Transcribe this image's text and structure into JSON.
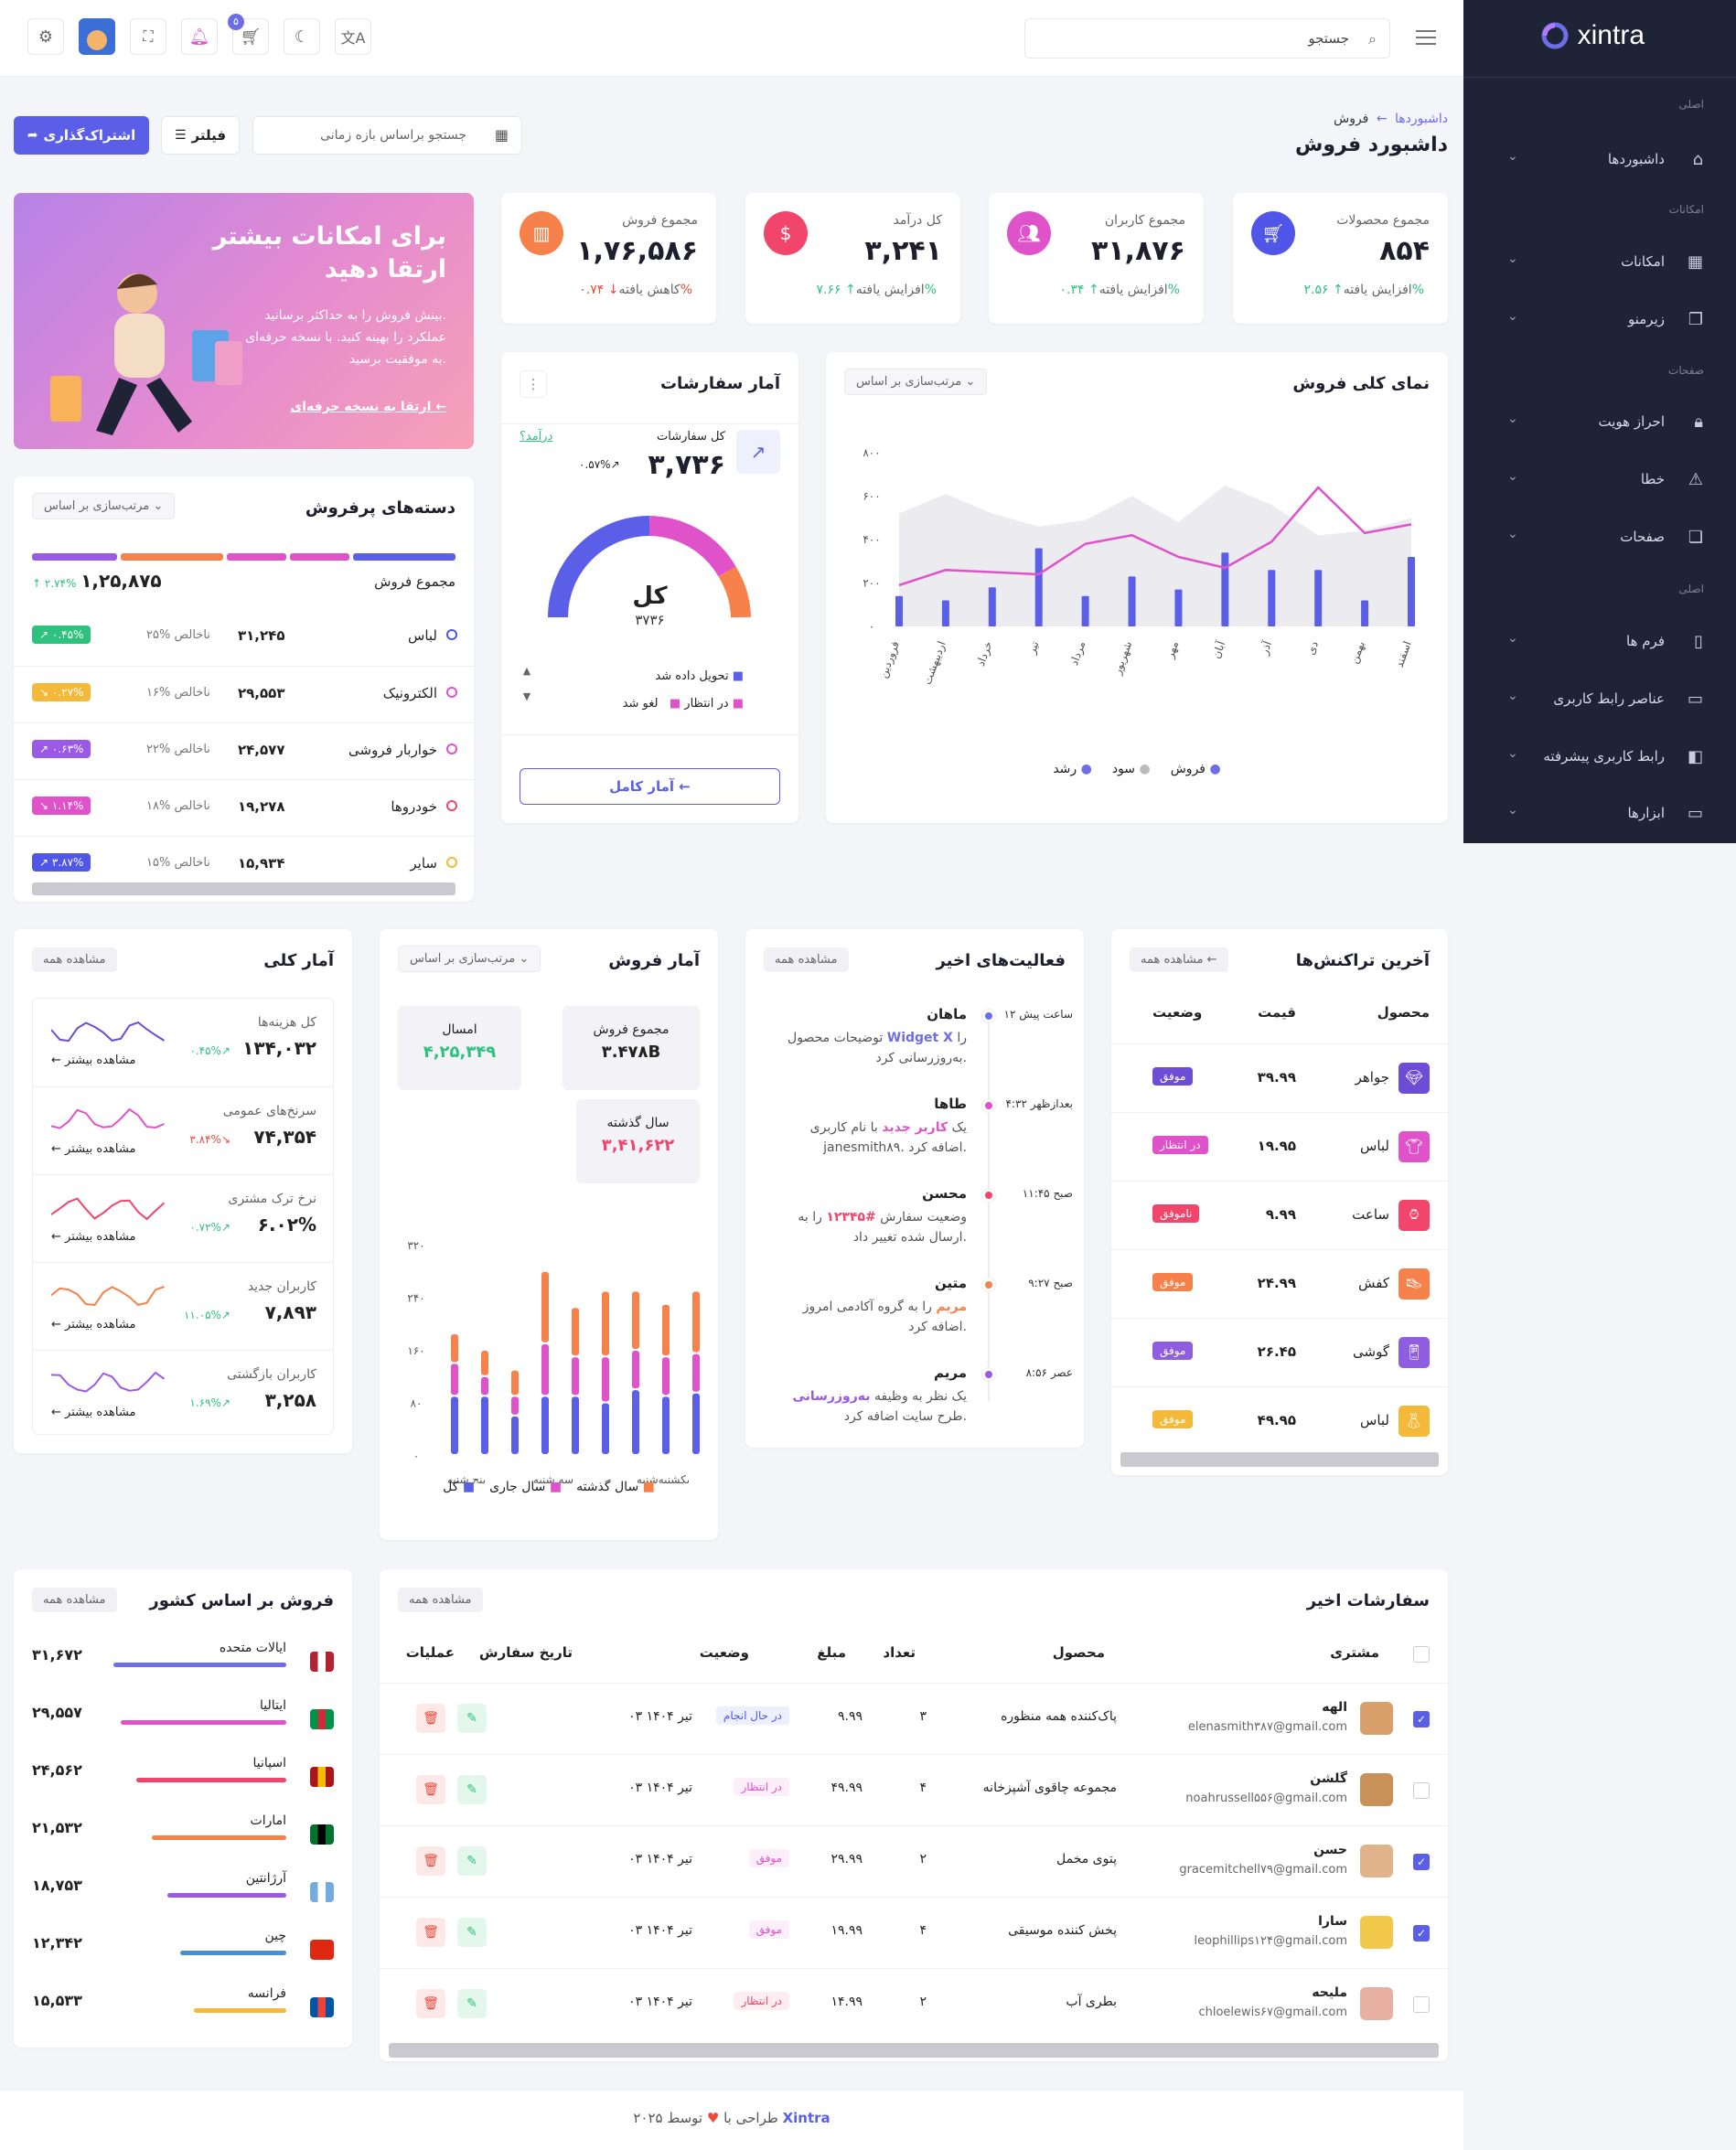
{
  "brand": "xintra",
  "header": {
    "search_placeholder": "جستجو",
    "cart_count": "۵"
  },
  "sidebar": {
    "sec1": "اصلی",
    "i1": "داشبوردها",
    "sec2": "امکانات",
    "i2": "امکانات",
    "i3": "زیرمنو",
    "sec3": "صفحات",
    "i4": "احراز هویت",
    "i5": "خطا",
    "i6": "صفحات",
    "sec4": "اصلی",
    "i7": "فرم ها",
    "i8": "عناصر رابط کاربری",
    "i9": "رابط کاربری پیشرفته",
    "i10": "ابزارها"
  },
  "page": {
    "crumb1": "داشبوردها",
    "crumb_sep": "←",
    "crumb2": "فروش",
    "title": "داشبورد فروش",
    "date_placeholder": "جستجو براساس بازه زمانی",
    "filter": "فیلتر",
    "share": "اشتراک‌گذاری"
  },
  "stats": [
    {
      "label": "مجموع محصولات",
      "value": "۸۵۴",
      "change": "↑ ۲.۵۶%",
      "note": "افزایش یافته",
      "color": "#4f56e8"
    },
    {
      "label": "مجموع کاربران",
      "value": "۳۱,۸۷۶",
      "change": "↑ ۰.۳۴%",
      "note": "افزایش یافته",
      "color": "#e052c9"
    },
    {
      "label": "کل درآمد",
      "value": "۳,۲۴۱",
      "change": "↑ ۷.۶۶%",
      "note": "افزایش یافته",
      "color": "#f2456c"
    },
    {
      "label": "مجموع فروش",
      "value": "۱,۷۶,۵۸۶",
      "change": "↓ ۰.۷۴%",
      "note": "کاهش یافته",
      "color": "#f7814a"
    }
  ],
  "promo": {
    "title1": "برای امکانات بیشتر",
    "title2": "ارتقا دهید",
    "desc1": "بینش فروش را به حداکثر برسانید.",
    "desc2": "عملکرد را بهینه کنید. با نسخه حرفه‌ای",
    "desc3": "به موفقیت برسید.",
    "link": "ارتقا به نسخه حرفه‌ای ←"
  },
  "overview": {
    "title": "نمای کلی فروش",
    "sort": "مرتب‌سازی بر اساس ⌄",
    "legend": [
      "فروش",
      "سود",
      "رشد"
    ]
  },
  "chart_data": {
    "type": "bar",
    "categories": [
      "فروردین",
      "اردیبهشت",
      "خرداد",
      "تیر",
      "مرداد",
      "شهریور",
      "مهر",
      "آبان",
      "آذر",
      "دی",
      "بهمن",
      "اسفند"
    ],
    "y_ticks": [
      "۰",
      "۲۰۰",
      "۴۰۰",
      "۶۰۰",
      "۸۰۰"
    ],
    "ylim": [
      0,
      800
    ],
    "series": [
      {
        "name": "فروش",
        "values": [
          140,
          120,
          180,
          360,
          140,
          230,
          170,
          340,
          260,
          260,
          120,
          320
        ]
      },
      {
        "name": "سود",
        "values": [
          190,
          260,
          250,
          240,
          380,
          420,
          320,
          270,
          390,
          640,
          430,
          470
        ]
      },
      {
        "name": "رشد",
        "values": [
          520,
          610,
          520,
          460,
          490,
          600,
          480,
          650,
          560,
          420,
          440,
          500
        ]
      }
    ]
  },
  "orders": {
    "title": "آمار سفارشات",
    "total_label": "کل سفارشات",
    "total_value": "۳,۷۳۶",
    "change": "۰.۵۷%↗",
    "link": "درآمد؟",
    "center_label": "کل",
    "center_value": "۳۷۳۶",
    "legend": [
      "تحویل داده شد",
      "در انتظار",
      "لغو شد"
    ],
    "btn": "آمار کامل ←"
  },
  "categories": {
    "title": "دسته‌های پرفروش",
    "sort": "مرتب‌سازی بر اساس ⌄",
    "total_label": "مجموع فروش",
    "total_value": "۱,۲۵,۸۷۵",
    "total_change": "↑ ۲.۷۴%",
    "rows": [
      {
        "name": "لباس",
        "value": "۳۱,۲۴۵",
        "pct": "۲۵% ناخالص",
        "badge": "↗ ۰.۴۵%",
        "color": "#2ec27e",
        "dot": "#4f56e8"
      },
      {
        "name": "الکترونیک",
        "value": "۲۹,۵۵۳",
        "pct": "۱۶% ناخالص",
        "badge": "↘ ۰.۲۷%",
        "color": "#f5b93a",
        "dot": "#e052c9"
      },
      {
        "name": "خواربار فروشی",
        "value": "۲۴,۵۷۷",
        "pct": "۲۲% ناخالص",
        "badge": "↗ ۰.۶۳%",
        "color": "#9b59e8",
        "dot": "#e052c9"
      },
      {
        "name": "خودروها",
        "value": "۱۹,۲۷۸",
        "pct": "۱۸% ناخالص",
        "badge": "↘ ۱.۱۴%",
        "color": "#e052c9",
        "dot": "#f2456c"
      },
      {
        "name": "سایر",
        "value": "۱۵,۹۳۴",
        "pct": "۱۵% ناخالص",
        "badge": "↗ ۳.۸۷%",
        "color": "#4f56e8",
        "dot": "#f5b93a"
      }
    ]
  },
  "overall": {
    "title": "آمار کلی",
    "pill": "مشاهده همه",
    "more": "مشاهده بیشتر",
    "rows": [
      {
        "label": "کل هزینه‌ها",
        "value": "۱۳۴,۰۳۲",
        "change": "۰.۴۵%↗",
        "color": "#6d4cd6"
      },
      {
        "label": "سرنخ‌های عمومی",
        "value": "۷۴,۳۵۴",
        "change": "۳.۸۴%↘",
        "color": "#e052c9"
      },
      {
        "label": "نرخ ترک مشتری",
        "value": "۶.۰۲%",
        "change": "۰.۷۲%↗",
        "color": "#f2456c"
      },
      {
        "label": "کاربران جدید",
        "value": "۷,۸۹۳",
        "change": "۱۱.۰۵%↗",
        "color": "#f7814a"
      },
      {
        "label": "کاربران بازگشتی",
        "value": "۳,۲۵۸",
        "change": "۱.۶۹%↗",
        "color": "#9b59e8"
      }
    ]
  },
  "salesstats": {
    "title": "آمار فروش",
    "sort": "مرتب‌سازی بر اساس ⌄",
    "b1_label": "مجموع فروش",
    "b1_value": "۳.۴۷۸B",
    "b2_label": "امسال",
    "b2_value": "۴,۲۵,۳۴۹",
    "b3_label": "سال گذشته",
    "b3_value": "۳,۴۱,۶۲۲",
    "y_ticks": [
      "۰",
      "۸۰",
      "۱۶۰",
      "۲۴۰",
      "۳۲۰"
    ],
    "x_labels": [
      "یکشنبه‌شنبه",
      "سه شنبه",
      "پنج شنبه"
    ],
    "legend": [
      "سال گذشته",
      "سال جاری",
      "کل"
    ]
  },
  "activity": {
    "title": "فعالیت‌های اخیر",
    "pill": "مشاهده همه",
    "items": [
      {
        "time": "۱۲ ساعت پیش",
        "name": "ماهان",
        "t1": "توضیحات محصول",
        "hl": "Widget X",
        "t2": "را",
        "t3": "به‌روزرسانی کرد.",
        "dot": "#6d6de8"
      },
      {
        "time": "۴:۳۲ بعدازظهر",
        "name": "طاها",
        "t1": "یک",
        "hl": "کاربر جدید",
        "t2": "با نام کاربری",
        "t3": "janesmith۸۹. اضافه کرد.",
        "dot": "#e052c9"
      },
      {
        "time": "۱۱:۴۵ صبح",
        "name": "محسن",
        "t1": "وضعیت سفارش",
        "hl": "#۱۲۳۴۵",
        "t2": "را به",
        "t3": "ارسال شده تغییر داد.",
        "dot": "#f2456c"
      },
      {
        "time": "۹:۲۷ صبح",
        "name": "متین",
        "t1": "",
        "hl": "مریم",
        "t2": "را به گروه آکادمی امروز",
        "t3": "اضافه کرد.",
        "dot": "#f7814a"
      },
      {
        "time": "۸:۵۶ عصر",
        "name": "مریم",
        "t1": "یک نظر به وظیفه",
        "hl": "به‌روزرسانی",
        "t2": "",
        "t3": "طرح سایت اضافه کرد.",
        "dot": "#9b59e8"
      }
    ]
  },
  "transactions": {
    "title": "آخرین تراکنش‌ها",
    "pill": "مشاهده همه ←",
    "h1": "محصول",
    "h2": "قیمت",
    "h3": "وضعیت",
    "rows": [
      {
        "name": "جواهر",
        "price": "۳۹.۹۹",
        "status": "موفق",
        "color": "#6d4cd6"
      },
      {
        "name": "لباس",
        "price": "۱۹.۹۵",
        "status": "در انتظار",
        "color": "#e052c9"
      },
      {
        "name": "ساعت",
        "price": "۹.۹۹",
        "status": "ناموفق",
        "color": "#f2456c"
      },
      {
        "name": "کفش",
        "price": "۲۴.۹۹",
        "status": "موفق",
        "color": "#f7814a"
      },
      {
        "name": "گوشی",
        "price": "۲۶.۴۵",
        "status": "موفق",
        "color": "#8e5de0"
      },
      {
        "name": "لباس",
        "price": "۴۹.۹۵",
        "status": "موفق",
        "color": "#f5b93a"
      }
    ]
  },
  "countries": {
    "title": "فروش بر اساس کشور",
    "pill": "مشاهده همه",
    "rows": [
      {
        "name": "ایالات متحده",
        "value": "۳۱,۶۷۲",
        "color": "#6d6de8",
        "w": 0.9
      },
      {
        "name": "ایتالیا",
        "value": "۲۹,۵۵۷",
        "color": "#e052c9",
        "w": 0.86
      },
      {
        "name": "اسپانیا",
        "value": "۲۴,۵۶۲",
        "color": "#f2456c",
        "w": 0.78
      },
      {
        "name": "امارات",
        "value": "۲۱,۵۳۲",
        "color": "#f7814a",
        "w": 0.7
      },
      {
        "name": "آرژانتین",
        "value": "۱۸,۷۵۳",
        "color": "#9b59e8",
        "w": 0.62
      },
      {
        "name": "چین",
        "value": "۱۲,۳۴۲",
        "color": "#4a8fd6",
        "w": 0.55
      },
      {
        "name": "فرانسه",
        "value": "۱۵,۵۳۳",
        "color": "#f5b93a",
        "w": 0.48
      }
    ]
  },
  "recent": {
    "title": "سفارشات اخیر",
    "pill": "مشاهده همه",
    "h": [
      "مشتری",
      "محصول",
      "تعداد",
      "مبلغ",
      "وضعیت",
      "تاریخ سفارش",
      "عملیات"
    ],
    "rows": [
      {
        "name": "الهه",
        "email": "elenasmith۳۸۷@gmail.com",
        "product": "پاک‌کننده همه منظوره",
        "qty": "۳",
        "amount": "۹.۹۹",
        "status": "در حال انجام",
        "scolor": "#4f56e8",
        "date": "۰۳ تیر ۱۴۰۴",
        "checked": true
      },
      {
        "name": "گلشن",
        "email": "noahrussell۵۵۶@gmail.com",
        "product": "مجموعه چاقوی آشپزخانه",
        "qty": "۴",
        "amount": "۴۹.۹۹",
        "status": "در انتظار",
        "scolor": "#e052c9",
        "date": "۰۳ تیر ۱۴۰۴",
        "checked": false
      },
      {
        "name": "حسن",
        "email": "gracemitchell۷۹@gmail.com",
        "product": "پتوی مخمل",
        "qty": "۲",
        "amount": "۲۹.۹۹",
        "status": "موفق",
        "scolor": "#e052c9",
        "date": "۰۳ تیر ۱۴۰۴",
        "checked": true
      },
      {
        "name": "سارا",
        "email": "leophillips۱۲۴@gmail.com",
        "product": "پخش کننده موسیقی",
        "qty": "۴",
        "amount": "۱۹.۹۹",
        "status": "موفق",
        "scolor": "#e052c9",
        "date": "۰۳ تیر ۱۴۰۴",
        "checked": true
      },
      {
        "name": "ملیحه",
        "email": "chloelewis۶۷@gmail.com",
        "product": "بطری آب",
        "qty": "۲",
        "amount": "۱۴.۹۹",
        "status": "در انتظار",
        "scolor": "#f2456c",
        "date": "۰۳ تیر ۱۴۰۴",
        "checked": false
      }
    ]
  },
  "footer": {
    "text": "۲۰۲۵ طراحی با",
    "by": "توسط",
    "brand": "Xintra"
  }
}
